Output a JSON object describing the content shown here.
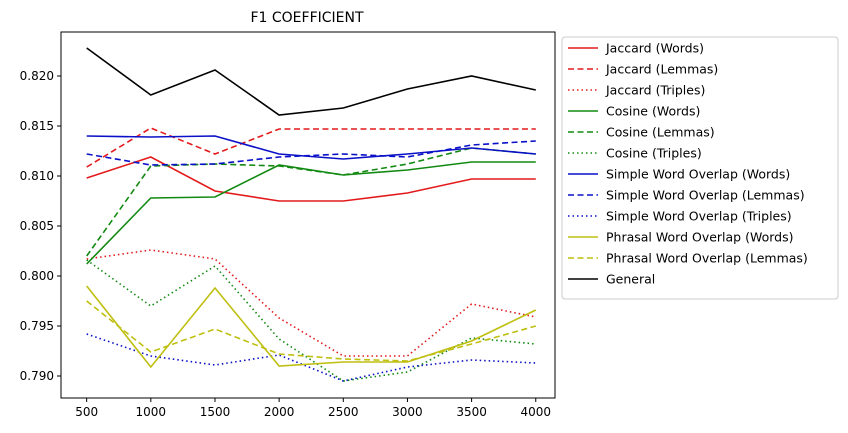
{
  "chart_data": {
    "type": "line",
    "title": "F1 COEFFICIENT",
    "xlabel": "",
    "ylabel": "",
    "x": [
      500,
      1000,
      1500,
      2000,
      2500,
      3000,
      3500,
      4000
    ],
    "xticks": [
      "500",
      "1000",
      "1500",
      "2000",
      "2500",
      "3000",
      "3500",
      "4000"
    ],
    "yticks": [
      "0.790",
      "0.795",
      "0.800",
      "0.805",
      "0.810",
      "0.815",
      "0.820"
    ],
    "ytick_values": [
      0.79,
      0.795,
      0.8,
      0.805,
      0.81,
      0.815,
      0.82
    ],
    "xlim": [
      300,
      4150
    ],
    "ylim": [
      0.7878,
      0.8244
    ],
    "grid": false,
    "legend_position": "outside-right",
    "series": [
      {
        "name": "Jaccard (Words)",
        "color": "#e31a1c",
        "style": "solid",
        "values": [
          0.8098,
          0.8119,
          0.8085,
          0.8075,
          0.8075,
          0.8083,
          0.8097,
          0.8097
        ]
      },
      {
        "name": "Jaccard (Lemmas)",
        "color": "#e31a1c",
        "style": "dashed",
        "values": [
          0.8109,
          0.8148,
          0.8122,
          0.8147,
          0.8147,
          0.8147,
          0.8147,
          0.8147
        ]
      },
      {
        "name": "Jaccard (Triples)",
        "color": "#e31a1c",
        "style": "dotted",
        "values": [
          0.8017,
          0.8026,
          0.8017,
          0.7958,
          0.792,
          0.792,
          0.7972,
          0.7959
        ]
      },
      {
        "name": "Cosine (Words)",
        "color": "#128a12",
        "style": "solid",
        "values": [
          0.8012,
          0.8078,
          0.8079,
          0.8111,
          0.8101,
          0.8106,
          0.8114,
          0.8114
        ]
      },
      {
        "name": "Cosine (Lemmas)",
        "color": "#128a12",
        "style": "dashed",
        "values": [
          0.802,
          0.811,
          0.8112,
          0.811,
          0.8101,
          0.8112,
          0.8128,
          0.8122
        ]
      },
      {
        "name": "Cosine (Triples)",
        "color": "#128a12",
        "style": "dotted",
        "values": [
          0.8016,
          0.797,
          0.801,
          0.7937,
          0.7895,
          0.7904,
          0.7938,
          0.7932
        ]
      },
      {
        "name": "Simple Word Overlap (Words)",
        "color": "#0a10c8",
        "style": "solid",
        "values": [
          0.814,
          0.8139,
          0.814,
          0.8122,
          0.8117,
          0.8122,
          0.8128,
          0.8122
        ]
      },
      {
        "name": "Simple Word Overlap (Lemmas)",
        "color": "#0a10c8",
        "style": "dashed",
        "values": [
          0.8122,
          0.8111,
          0.8112,
          0.8119,
          0.8122,
          0.8119,
          0.8131,
          0.8135
        ]
      },
      {
        "name": "Simple Word Overlap (Triples)",
        "color": "#0a10c8",
        "style": "dotted",
        "values": [
          0.7942,
          0.792,
          0.7911,
          0.7921,
          0.7895,
          0.7909,
          0.7916,
          0.7913
        ]
      },
      {
        "name": "Phrasal Word Overlap (Words)",
        "color": "#bfbf10",
        "style": "solid",
        "values": [
          0.799,
          0.7909,
          0.7988,
          0.791,
          0.7914,
          0.7914,
          0.7935,
          0.7966
        ]
      },
      {
        "name": "Phrasal Word Overlap (Lemmas)",
        "color": "#bfbf10",
        "style": "dashed",
        "values": [
          0.7975,
          0.7924,
          0.7947,
          0.7922,
          0.7917,
          0.7915,
          0.7932,
          0.795
        ]
      },
      {
        "name": "General",
        "color": "#000000",
        "style": "solid",
        "values": [
          0.8228,
          0.8181,
          0.8206,
          0.8161,
          0.8168,
          0.8187,
          0.82,
          0.8186
        ]
      }
    ]
  }
}
